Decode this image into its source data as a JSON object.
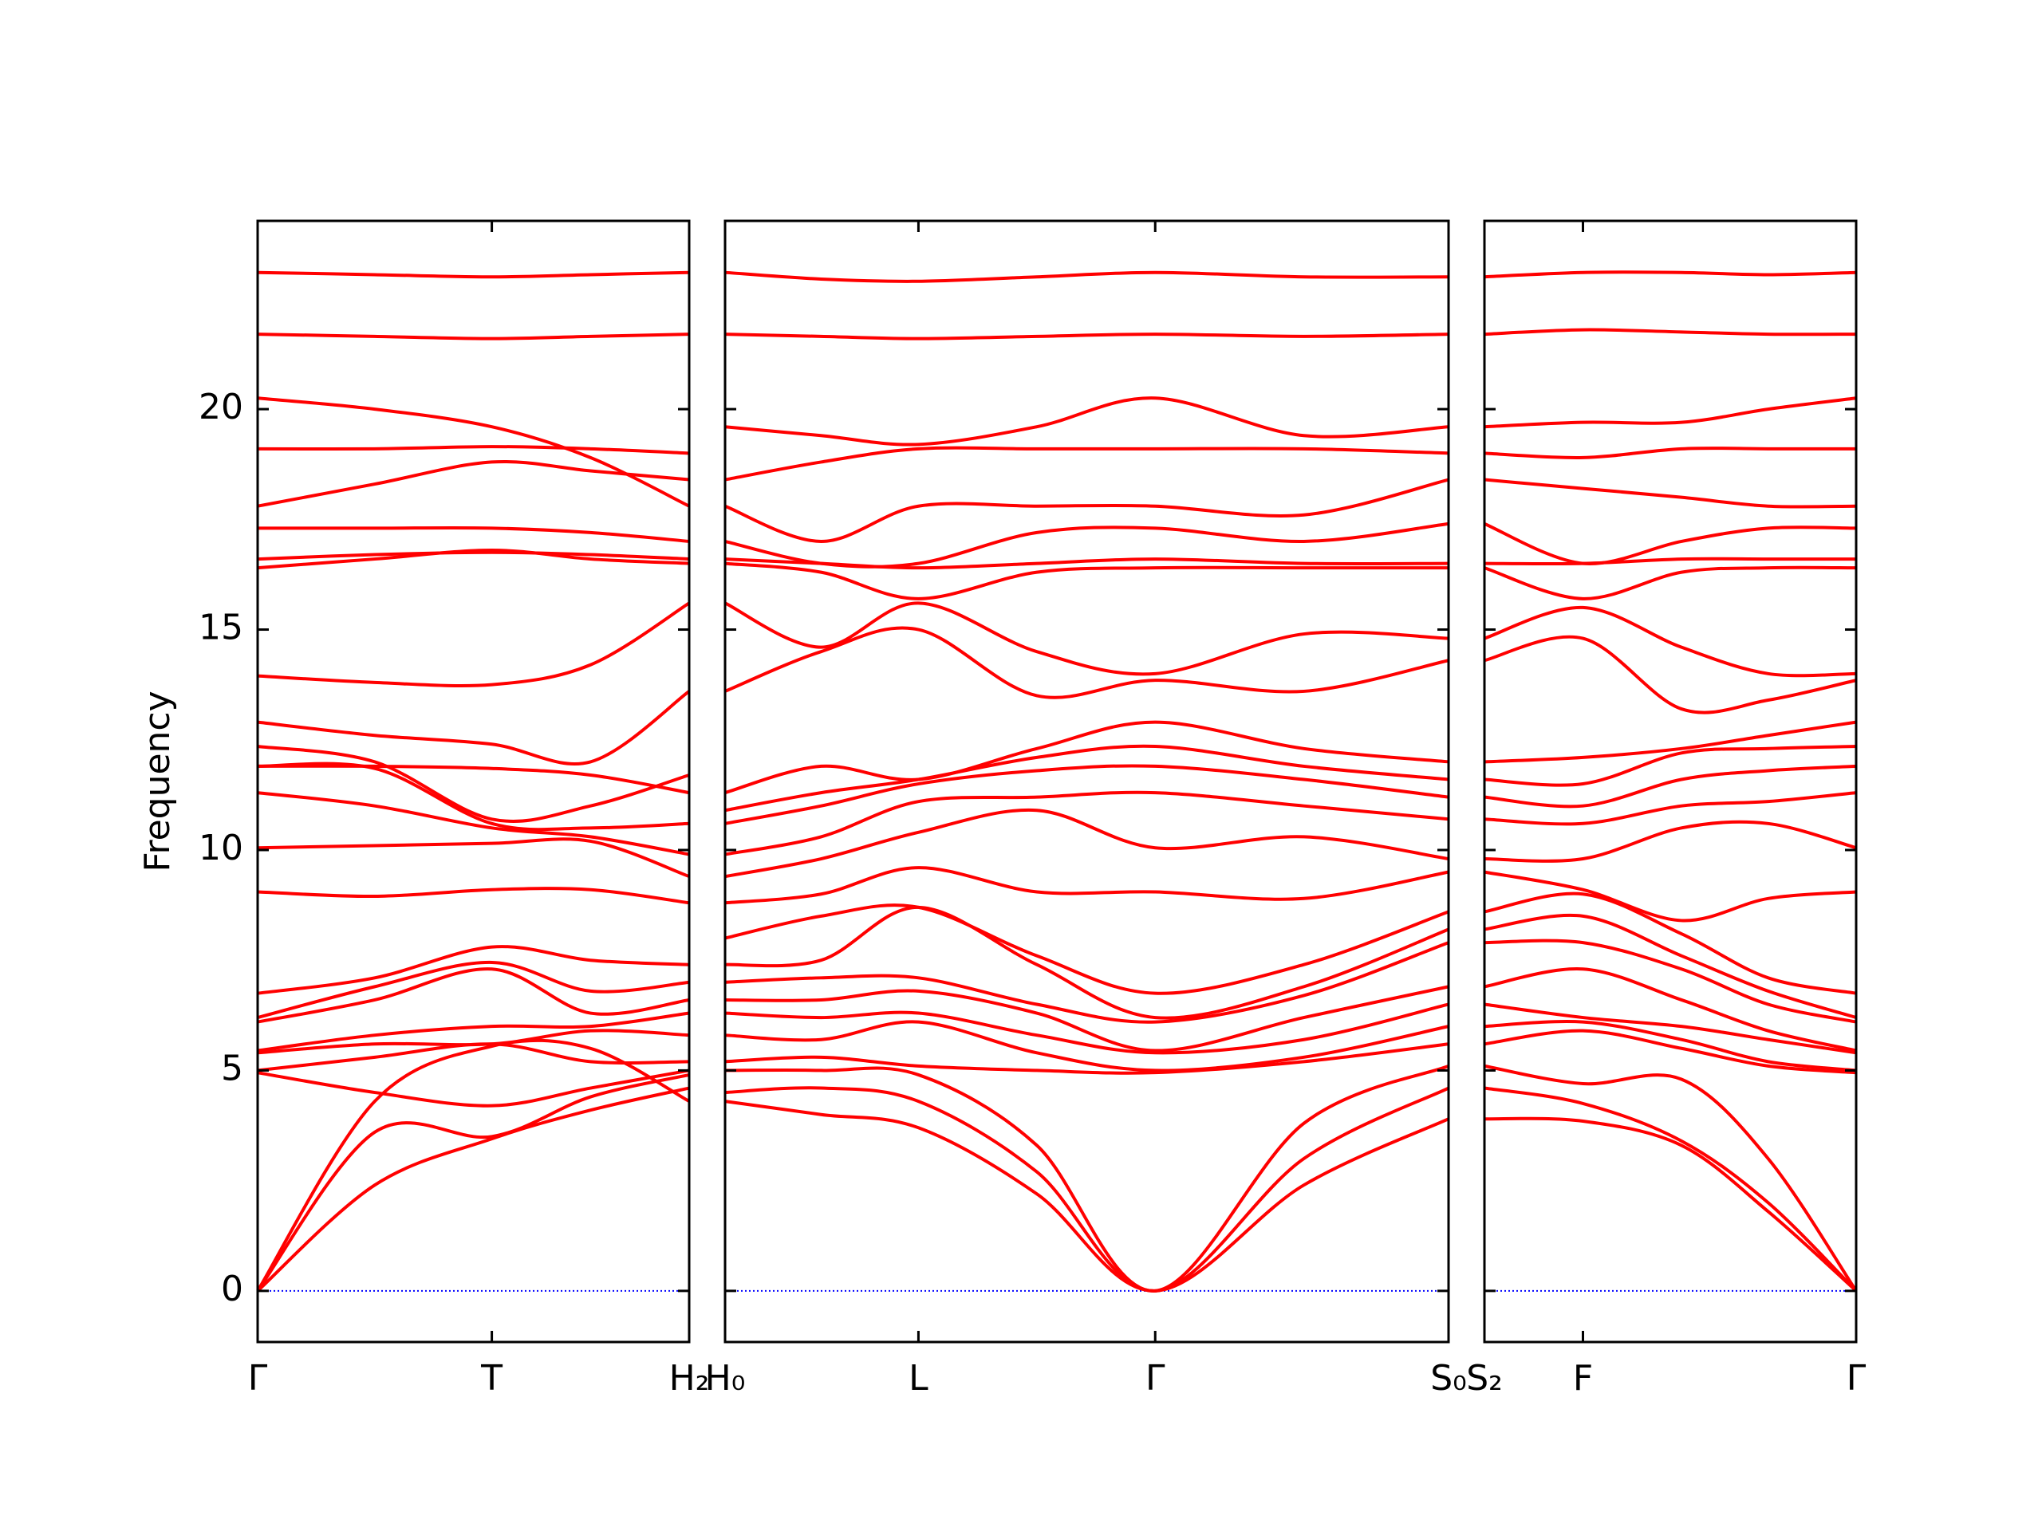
{
  "chart_data": [
    {
      "type": "line",
      "ylabel": "Frequency",
      "line_color": "#ff0000",
      "hline": 0,
      "hline_color": "#0000ff",
      "show_ytick_labels": true,
      "xlim": [
        0,
        0.328
      ],
      "ylim": [
        -1.16,
        24.27
      ],
      "yticks": [
        0,
        5,
        10,
        15,
        20
      ],
      "xticks": [
        {
          "value": 0,
          "label": "Γ"
        },
        {
          "value": 0.178,
          "label": "T"
        },
        {
          "value": 0.328,
          "label": "H₂"
        }
      ],
      "x": [
        0,
        0.089,
        0.178,
        0.253,
        0.328
      ],
      "series": [
        {
          "values": [
            0,
            2.4,
            3.45,
            4.1,
            4.6
          ]
        },
        {
          "values": [
            0,
            3.6,
            3.5,
            4.4,
            4.9
          ]
        },
        {
          "values": [
            0,
            4.3,
            5.55,
            5.5,
            4.3
          ]
        },
        {
          "values": [
            4.95,
            4.5,
            4.2,
            4.6,
            5.0
          ]
        },
        {
          "values": [
            5.0,
            5.3,
            5.6,
            5.2,
            5.2
          ]
        },
        {
          "values": [
            5.4,
            5.6,
            5.6,
            5.9,
            5.8
          ]
        },
        {
          "values": [
            5.45,
            5.8,
            6.0,
            6.0,
            6.3
          ]
        },
        {
          "values": [
            6.1,
            6.6,
            7.3,
            6.3,
            6.6
          ]
        },
        {
          "values": [
            6.2,
            6.9,
            7.45,
            6.8,
            7.0
          ]
        },
        {
          "values": [
            6.75,
            7.1,
            7.8,
            7.5,
            7.4
          ]
        },
        {
          "values": [
            9.05,
            8.95,
            9.1,
            9.1,
            8.8
          ]
        },
        {
          "values": [
            10.05,
            10.1,
            10.15,
            10.2,
            9.4
          ]
        },
        {
          "values": [
            11.3,
            11.0,
            10.5,
            10.3,
            9.9
          ]
        },
        {
          "values": [
            11.9,
            11.85,
            10.6,
            10.5,
            10.6
          ]
        },
        {
          "values": [
            11.9,
            11.9,
            11.85,
            11.7,
            11.3
          ]
        },
        {
          "values": [
            12.35,
            12.0,
            10.7,
            11.0,
            11.7
          ]
        },
        {
          "values": [
            12.9,
            12.6,
            12.4,
            12.0,
            13.6
          ]
        },
        {
          "values": [
            13.95,
            13.8,
            13.75,
            14.2,
            15.6
          ]
        },
        {
          "values": [
            16.4,
            16.6,
            16.8,
            16.6,
            16.5
          ]
        },
        {
          "values": [
            16.6,
            16.7,
            16.75,
            16.7,
            16.6
          ]
        },
        {
          "values": [
            17.3,
            17.3,
            17.3,
            17.2,
            17.0
          ]
        },
        {
          "values": [
            17.8,
            18.3,
            18.8,
            18.6,
            18.4
          ]
        },
        {
          "values": [
            19.1,
            19.1,
            19.15,
            19.1,
            19.0
          ]
        },
        {
          "values": [
            20.25,
            20.0,
            19.6,
            18.9,
            17.8
          ]
        },
        {
          "values": [
            21.7,
            21.65,
            21.6,
            21.65,
            21.7
          ]
        },
        {
          "values": [
            23.1,
            23.05,
            23.0,
            23.05,
            23.1
          ]
        }
      ]
    },
    {
      "type": "line",
      "line_color": "#ff0000",
      "hline": 0,
      "hline_color": "#0000ff",
      "show_ytick_labels": false,
      "xlim": [
        0,
        0.55
      ],
      "ylim": [
        -1.16,
        24.27
      ],
      "yticks": [
        0,
        5,
        10,
        15,
        20
      ],
      "xticks": [
        {
          "value": 0,
          "label": "H₀"
        },
        {
          "value": 0.147,
          "label": "L"
        },
        {
          "value": 0.327,
          "label": "Γ"
        },
        {
          "value": 0.55,
          "label": "S₀"
        }
      ],
      "x": [
        0,
        0.073,
        0.147,
        0.237,
        0.327,
        0.44,
        0.55
      ],
      "series": [
        {
          "values": [
            4.3,
            4.0,
            3.7,
            2.2,
            0,
            2.4,
            3.9
          ]
        },
        {
          "values": [
            4.5,
            4.6,
            4.3,
            2.7,
            0,
            3.0,
            4.6
          ]
        },
        {
          "values": [
            5.0,
            5.0,
            4.9,
            3.3,
            0,
            3.8,
            5.1
          ]
        },
        {
          "values": [
            5.2,
            5.3,
            5.1,
            5.0,
            4.95,
            5.2,
            5.6
          ]
        },
        {
          "values": [
            5.8,
            5.7,
            6.1,
            5.4,
            5.0,
            5.3,
            6.0
          ]
        },
        {
          "values": [
            6.3,
            6.2,
            6.3,
            5.8,
            5.4,
            5.7,
            6.5
          ]
        },
        {
          "values": [
            6.6,
            6.6,
            6.8,
            6.3,
            5.45,
            6.2,
            6.9
          ]
        },
        {
          "values": [
            7.0,
            7.1,
            7.1,
            6.5,
            6.1,
            6.7,
            7.9
          ]
        },
        {
          "values": [
            7.4,
            7.5,
            8.7,
            7.4,
            6.2,
            6.9,
            8.2
          ]
        },
        {
          "values": [
            8.0,
            8.5,
            8.7,
            7.6,
            6.75,
            7.4,
            8.6
          ]
        },
        {
          "values": [
            8.8,
            9.0,
            9.6,
            9.05,
            9.05,
            8.9,
            9.5
          ]
        },
        {
          "values": [
            9.4,
            9.8,
            10.4,
            10.9,
            10.05,
            10.3,
            9.8
          ]
        },
        {
          "values": [
            9.9,
            10.3,
            11.1,
            11.2,
            11.3,
            11.0,
            10.7
          ]
        },
        {
          "values": [
            10.6,
            11.0,
            11.5,
            11.8,
            11.9,
            11.6,
            11.2
          ]
        },
        {
          "values": [
            10.9,
            11.3,
            11.6,
            12.1,
            12.35,
            11.9,
            11.6
          ]
        },
        {
          "values": [
            11.3,
            11.9,
            11.6,
            12.3,
            12.9,
            12.3,
            12.0
          ]
        },
        {
          "values": [
            13.6,
            14.5,
            15.0,
            13.5,
            13.85,
            13.6,
            14.3
          ]
        },
        {
          "values": [
            15.6,
            14.6,
            15.6,
            14.5,
            14.0,
            14.9,
            14.8
          ]
        },
        {
          "values": [
            16.5,
            16.3,
            15.7,
            16.3,
            16.4,
            16.4,
            16.4
          ]
        },
        {
          "values": [
            16.6,
            16.5,
            16.4,
            16.5,
            16.6,
            16.5,
            16.5
          ]
        },
        {
          "values": [
            17.0,
            16.5,
            16.5,
            17.2,
            17.3,
            17.0,
            17.4
          ]
        },
        {
          "values": [
            17.8,
            17.0,
            17.8,
            17.8,
            17.8,
            17.6,
            18.4
          ]
        },
        {
          "values": [
            18.4,
            18.8,
            19.1,
            19.1,
            19.1,
            19.1,
            19.0
          ]
        },
        {
          "values": [
            19.6,
            19.4,
            19.2,
            19.6,
            20.25,
            19.4,
            19.6
          ]
        },
        {
          "values": [
            21.7,
            21.65,
            21.6,
            21.65,
            21.7,
            21.65,
            21.7
          ]
        },
        {
          "values": [
            23.1,
            22.95,
            22.9,
            23.0,
            23.1,
            23.0,
            23.0
          ]
        }
      ]
    },
    {
      "type": "line",
      "line_color": "#ff0000",
      "hline": 0,
      "hline_color": "#0000ff",
      "show_ytick_labels": false,
      "xlim": [
        0,
        0.283
      ],
      "ylim": [
        -1.16,
        24.27
      ],
      "yticks": [
        0,
        5,
        10,
        15,
        20
      ],
      "xticks": [
        {
          "value": 0,
          "label": "S₂"
        },
        {
          "value": 0.075,
          "label": "F"
        },
        {
          "value": 0.283,
          "label": "Γ"
        }
      ],
      "x": [
        0,
        0.075,
        0.15,
        0.216,
        0.283
      ],
      "series": [
        {
          "values": [
            3.9,
            3.85,
            3.3,
            1.8,
            0
          ]
        },
        {
          "values": [
            4.6,
            4.25,
            3.4,
            2.0,
            0
          ]
        },
        {
          "values": [
            5.1,
            4.7,
            4.8,
            3.0,
            0
          ]
        },
        {
          "values": [
            5.6,
            5.9,
            5.5,
            5.1,
            4.95
          ]
        },
        {
          "values": [
            6.0,
            6.1,
            5.7,
            5.2,
            5.0
          ]
        },
        {
          "values": [
            6.5,
            6.2,
            6.0,
            5.7,
            5.4
          ]
        },
        {
          "values": [
            6.9,
            7.3,
            6.6,
            5.9,
            5.45
          ]
        },
        {
          "values": [
            7.9,
            7.9,
            7.3,
            6.5,
            6.1
          ]
        },
        {
          "values": [
            8.2,
            8.5,
            7.6,
            6.8,
            6.2
          ]
        },
        {
          "values": [
            8.6,
            9.0,
            8.1,
            7.1,
            6.75
          ]
        },
        {
          "values": [
            9.5,
            9.1,
            8.4,
            8.9,
            9.05
          ]
        },
        {
          "values": [
            9.8,
            9.8,
            10.5,
            10.6,
            10.05
          ]
        },
        {
          "values": [
            10.7,
            10.6,
            11.0,
            11.1,
            11.3
          ]
        },
        {
          "values": [
            11.2,
            11.0,
            11.6,
            11.8,
            11.9
          ]
        },
        {
          "values": [
            11.6,
            11.5,
            12.2,
            12.3,
            12.35
          ]
        },
        {
          "values": [
            12.0,
            12.1,
            12.3,
            12.6,
            12.9
          ]
        },
        {
          "values": [
            14.3,
            14.8,
            13.2,
            13.4,
            13.85
          ]
        },
        {
          "values": [
            14.8,
            15.5,
            14.6,
            14.0,
            14.0
          ]
        },
        {
          "values": [
            16.4,
            15.7,
            16.3,
            16.4,
            16.4
          ]
        },
        {
          "values": [
            16.5,
            16.5,
            16.6,
            16.6,
            16.6
          ]
        },
        {
          "values": [
            17.4,
            16.5,
            17.0,
            17.3,
            17.3
          ]
        },
        {
          "values": [
            18.4,
            18.2,
            18.0,
            17.8,
            17.8
          ]
        },
        {
          "values": [
            19.0,
            18.9,
            19.1,
            19.1,
            19.1
          ]
        },
        {
          "values": [
            19.6,
            19.7,
            19.7,
            20.0,
            20.25
          ]
        },
        {
          "values": [
            21.7,
            21.8,
            21.75,
            21.7,
            21.7
          ]
        },
        {
          "values": [
            23.0,
            23.1,
            23.1,
            23.05,
            23.1
          ]
        }
      ]
    }
  ]
}
